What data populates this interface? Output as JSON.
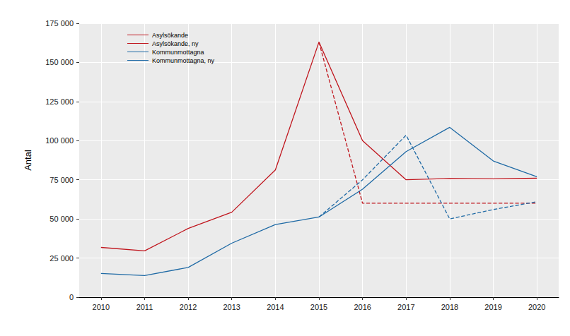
{
  "chart_data": {
    "type": "line",
    "y_label": "Antal",
    "x": [
      2010,
      2011,
      2012,
      2013,
      2014,
      2015,
      2016,
      2017,
      2018,
      2019,
      2020
    ],
    "xlim": [
      2009.5,
      2020.5
    ],
    "xticks": [
      2010,
      2011,
      2012,
      2013,
      2014,
      2015,
      2016,
      2017,
      2018,
      2019,
      2020
    ],
    "ylim": [
      0,
      175000
    ],
    "yticks": [
      0,
      {
        "value": 25000,
        "label": "25 000"
      },
      {
        "value": 50000,
        "label": "50 000"
      },
      {
        "value": 75000,
        "label": "75 000"
      },
      {
        "value": 100000,
        "label": "100 000"
      },
      {
        "value": 125000,
        "label": "125 000"
      },
      {
        "value": 150000,
        "label": "150 000"
      },
      {
        "value": 175000,
        "label": "175 000"
      }
    ],
    "grid": true,
    "legend": "top-left",
    "series": [
      {
        "name": "Asylsökande",
        "color": "#C0161E",
        "line_style": "solid",
        "values": [
          31800,
          29600,
          43900,
          54300,
          81300,
          163000,
          100000,
          75000,
          75800,
          75600,
          76000
        ]
      },
      {
        "name": "Asylsökande, ny",
        "color": "#C0161E",
        "line_style": "dashed",
        "values": [
          null,
          null,
          null,
          null,
          null,
          163000,
          60000,
          60000,
          60000,
          60000,
          60000
        ]
      },
      {
        "name": "Kommunmottagna",
        "color": "#1F6AA5",
        "line_style": "solid",
        "values": [
          15200,
          13800,
          19000,
          34500,
          46400,
          51200,
          69000,
          93000,
          108500,
          87000,
          77000
        ]
      },
      {
        "name": "Kommunmottagna, ny",
        "color": "#1F6AA5",
        "line_style": "dashed",
        "values": [
          null,
          null,
          null,
          null,
          null,
          51200,
          75000,
          103500,
          50000,
          56000,
          61000
        ]
      }
    ]
  }
}
